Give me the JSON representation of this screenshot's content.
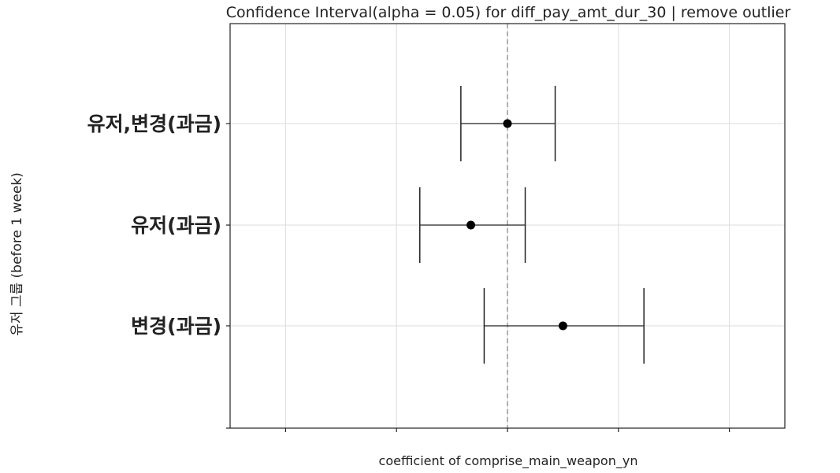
{
  "chart_data": {
    "type": "errorbar",
    "title": "Confidence Interval(alpha = 0.05) for diff_pay_amt_dur_30 | remove outlier",
    "xlabel": "coefficient of comprise_main_weapon_yn",
    "ylabel": "유저 그룹 (before 1 week)",
    "xlim": [
      -2.5,
      2.5
    ],
    "x_ticks": [
      -2,
      -1,
      0,
      1,
      2
    ],
    "x_tick_labels_visible": false,
    "reference_line": {
      "x": 0,
      "style": "dashed",
      "color": "#999999"
    },
    "grid": true,
    "series": [
      {
        "category": "유저,변경(과금)",
        "estimate": 0.0,
        "lower": -0.42,
        "upper": 0.43
      },
      {
        "category": "유저(과금)",
        "estimate": -0.33,
        "lower": -0.79,
        "upper": 0.16
      },
      {
        "category": "변경(과금)",
        "estimate": 0.5,
        "lower": -0.21,
        "upper": 1.23
      }
    ]
  }
}
